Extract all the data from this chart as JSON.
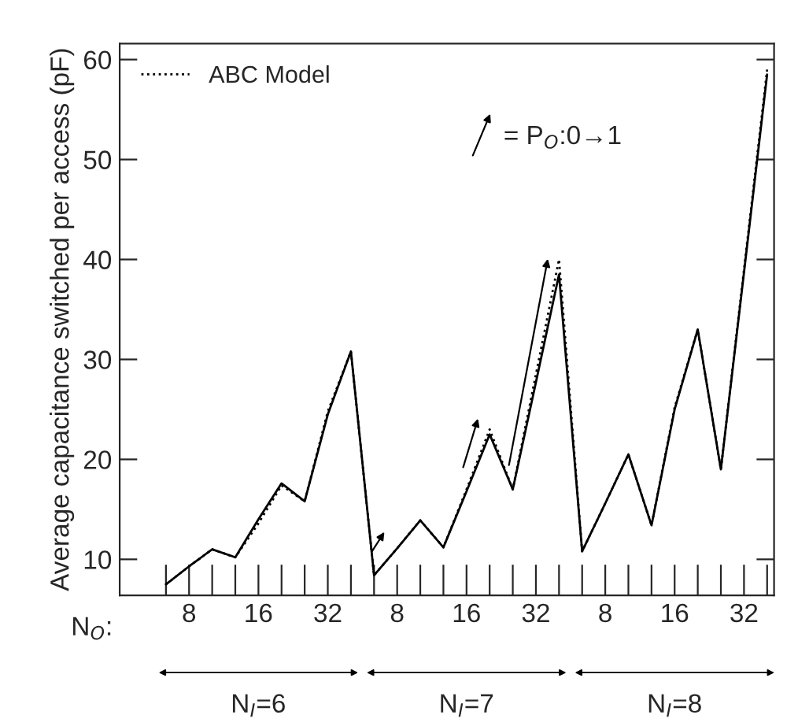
{
  "chart_data": {
    "type": "line",
    "ylabel": "Average capacitance switched per access (pF)",
    "categories": [
      null,
      "8",
      null,
      null,
      "16",
      null,
      null,
      "32",
      null,
      null,
      "8",
      null,
      null,
      "16",
      null,
      null,
      "32",
      null,
      null,
      "8",
      null,
      null,
      "16",
      null,
      null,
      "32",
      null
    ],
    "series": [
      {
        "color": "#000000",
        "line_style": "solid",
        "values": [
          7.5,
          9.3,
          11,
          10.2,
          14,
          17.6,
          15.8,
          24.5,
          30.8,
          8.4,
          11.1,
          13.9,
          11.2,
          16.8,
          22.5,
          17,
          27.7,
          38.5,
          10.8,
          15.6,
          20.5,
          13.4,
          25,
          33,
          19,
          38.7,
          58.5
        ]
      },
      {
        "name": "ABC Model",
        "color": "#000000",
        "line_style": "dotted",
        "values": [
          7.5,
          9.3,
          11,
          10.2,
          13.6,
          17.4,
          15.8,
          24.8,
          30.8,
          8.4,
          11.1,
          13.9,
          11.2,
          17,
          23,
          17,
          28.5,
          40,
          10.8,
          15.6,
          20.5,
          13.4,
          25.2,
          33,
          19,
          39,
          59
        ]
      }
    ],
    "ylim": [
      6.4,
      61.6
    ],
    "yticks": [
      10,
      20,
      30,
      40,
      50,
      60
    ],
    "legend": "top left",
    "grid": false,
    "annotations": [
      "= P$_{O}$:0→1",
      "N$_{O}$:",
      "N$_{I}$=6",
      "N$_{I}$=7",
      "N$_{I}$=8"
    ]
  }
}
